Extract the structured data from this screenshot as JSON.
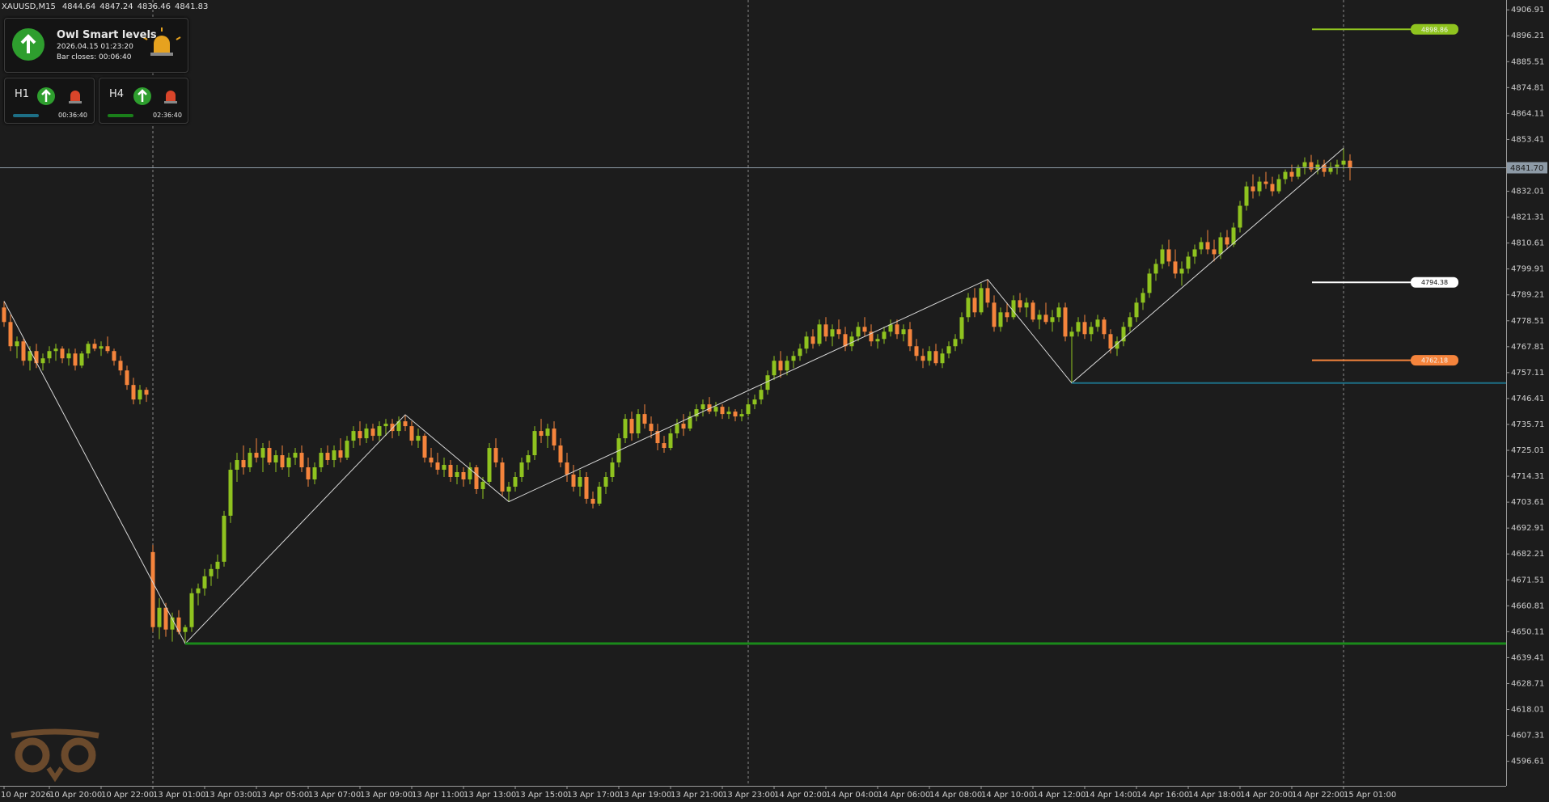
{
  "chart_data": {
    "type": "candlestick",
    "title": "XAUUSD,M15",
    "up_color": "#8fc31f",
    "down_color": "#f5843c",
    "zigzag_color": "#d8d8d8",
    "xlim": [
      -0.625,
      232.125
    ],
    "ylim": [
      4586.46,
      4910.98
    ],
    "yticks": [
      4906.91,
      4896.21,
      4885.51,
      4874.81,
      4864.11,
      4853.41,
      4842.71,
      4832.01,
      4821.31,
      4810.61,
      4799.91,
      4789.21,
      4778.51,
      4767.81,
      4757.11,
      4746.41,
      4735.71,
      4725.01,
      4714.31,
      4703.61,
      4692.91,
      4682.21,
      4671.51,
      4660.81,
      4650.11,
      4639.41,
      4628.71,
      4618.01,
      4607.31,
      4596.61
    ],
    "xticks": [
      {
        "value": 0,
        "label": "10 Apr 2026"
      },
      {
        "value": 7,
        "label": "10 Apr 20:00"
      },
      {
        "value": 15,
        "label": "10 Apr 22:00"
      },
      {
        "value": 23,
        "label": "13 Apr 01:00"
      },
      {
        "value": 31,
        "label": "13 Apr 03:00"
      },
      {
        "value": 39,
        "label": "13 Apr 05:00"
      },
      {
        "value": 47,
        "label": "13 Apr 07:00"
      },
      {
        "value": 55,
        "label": "13 Apr 09:00"
      },
      {
        "value": 63,
        "label": "13 Apr 11:00"
      },
      {
        "value": 71,
        "label": "13 Apr 13:00"
      },
      {
        "value": 79,
        "label": "13 Apr 15:00"
      },
      {
        "value": 87,
        "label": "13 Apr 17:00"
      },
      {
        "value": 95,
        "label": "13 Apr 19:00"
      },
      {
        "value": 103,
        "label": "13 Apr 21:00"
      },
      {
        "value": 111,
        "label": "13 Apr 23:00"
      },
      {
        "value": 119,
        "label": "14 Apr 02:00"
      },
      {
        "value": 127,
        "label": "14 Apr 04:00"
      },
      {
        "value": 135,
        "label": "14 Apr 06:00"
      },
      {
        "value": 143,
        "label": "14 Apr 08:00"
      },
      {
        "value": 151,
        "label": "14 Apr 10:00"
      },
      {
        "value": 159,
        "label": "14 Apr 12:00"
      },
      {
        "value": 167,
        "label": "14 Apr 14:00"
      },
      {
        "value": 175,
        "label": "14 Apr 16:00"
      },
      {
        "value": 183,
        "label": "14 Apr 18:00"
      },
      {
        "value": 191,
        "label": "14 Apr 20:00"
      },
      {
        "value": 199,
        "label": "14 Apr 22:00"
      },
      {
        "value": 207,
        "label": "15 Apr 01:00"
      }
    ],
    "candles": [
      [
        4784,
        4786.6,
        4776,
        4778
      ],
      [
        4778,
        4781,
        4766,
        4768
      ],
      [
        4768,
        4772,
        4763,
        4770
      ],
      [
        4770,
        4771,
        4760,
        4762
      ],
      [
        4762,
        4768,
        4758,
        4766
      ],
      [
        4766,
        4769,
        4759,
        4761
      ],
      [
        4761,
        4765,
        4758,
        4763
      ],
      [
        4763,
        4768,
        4761,
        4766
      ],
      [
        4766,
        4769,
        4762,
        4767
      ],
      [
        4767,
        4768,
        4761,
        4763
      ],
      [
        4763,
        4767,
        4760,
        4765
      ],
      [
        4765,
        4767,
        4758,
        4760
      ],
      [
        4760,
        4766,
        4759,
        4765
      ],
      [
        4765,
        4770,
        4763,
        4769
      ],
      [
        4769,
        4771,
        4766,
        4767
      ],
      [
        4767,
        4770,
        4764,
        4768
      ],
      [
        4768,
        4772,
        4765,
        4766
      ],
      [
        4766,
        4767,
        4760,
        4762
      ],
      [
        4762,
        4764,
        4756,
        4758
      ],
      [
        4758,
        4760,
        4750,
        4752
      ],
      [
        4752,
        4755,
        4744,
        4746
      ],
      [
        4746,
        4752,
        4744,
        4750
      ],
      [
        4750,
        4751,
        4745,
        4748
      ],
      [
        4683,
        4686,
        4650,
        4652
      ],
      [
        4652,
        4664,
        4647,
        4660
      ],
      [
        4660,
        4662,
        4648,
        4651
      ],
      [
        4651,
        4658,
        4646,
        4656
      ],
      [
        4656,
        4659,
        4649,
        4650
      ],
      [
        4650,
        4653,
        4645.2,
        4652
      ],
      [
        4652,
        4668,
        4650,
        4666
      ],
      [
        4666,
        4670,
        4661,
        4668
      ],
      [
        4668,
        4676,
        4665,
        4673
      ],
      [
        4673,
        4678,
        4669,
        4676
      ],
      [
        4676,
        4682,
        4672,
        4679
      ],
      [
        4679,
        4700,
        4677,
        4698
      ],
      [
        4698,
        4720,
        4695,
        4717
      ],
      [
        4717,
        4724,
        4712,
        4721
      ],
      [
        4721,
        4727,
        4715,
        4718
      ],
      [
        4718,
        4726,
        4716,
        4724
      ],
      [
        4724,
        4730,
        4720,
        4722
      ],
      [
        4722,
        4728,
        4716,
        4726
      ],
      [
        4726,
        4729,
        4719,
        4720
      ],
      [
        4720,
        4725,
        4716,
        4723
      ],
      [
        4723,
        4727,
        4717,
        4718
      ],
      [
        4718,
        4724,
        4714,
        4722
      ],
      [
        4722,
        4726,
        4719,
        4724
      ],
      [
        4724,
        4727,
        4716,
        4718
      ],
      [
        4718,
        4722,
        4710,
        4713
      ],
      [
        4713,
        4720,
        4711,
        4718
      ],
      [
        4718,
        4726,
        4716,
        4724
      ],
      [
        4724,
        4727,
        4719,
        4721
      ],
      [
        4721,
        4727,
        4718,
        4725
      ],
      [
        4725,
        4730,
        4720,
        4722
      ],
      [
        4722,
        4731,
        4721,
        4729
      ],
      [
        4729,
        4735,
        4726,
        4733
      ],
      [
        4733,
        4737,
        4727,
        4730
      ],
      [
        4730,
        4736,
        4728,
        4734
      ],
      [
        4734,
        4736,
        4729,
        4731
      ],
      [
        4731,
        4737,
        4729,
        4735
      ],
      [
        4735,
        4738,
        4731,
        4736
      ],
      [
        4736,
        4738,
        4730,
        4733
      ],
      [
        4733,
        4739,
        4731,
        4737
      ],
      [
        4737,
        4739.7,
        4733,
        4735
      ],
      [
        4735,
        4737,
        4727,
        4729
      ],
      [
        4729,
        4734,
        4726,
        4731
      ],
      [
        4731,
        4732,
        4720,
        4722
      ],
      [
        4722,
        4726,
        4718,
        4720
      ],
      [
        4720,
        4724,
        4715,
        4717
      ],
      [
        4717,
        4722,
        4714,
        4719
      ],
      [
        4719,
        4721,
        4712,
        4714
      ],
      [
        4714,
        4719,
        4711,
        4716
      ],
      [
        4716,
        4718,
        4710,
        4713
      ],
      [
        4713,
        4720,
        4711,
        4718
      ],
      [
        4718,
        4719,
        4707,
        4709
      ],
      [
        4709,
        4714,
        4705,
        4712
      ],
      [
        4712,
        4728,
        4711,
        4726
      ],
      [
        4726,
        4730,
        4718,
        4720
      ],
      [
        4720,
        4722,
        4706,
        4708
      ],
      [
        4708,
        4712,
        4703.8,
        4710
      ],
      [
        4710,
        4716,
        4708,
        4714
      ],
      [
        4714,
        4722,
        4712,
        4720
      ],
      [
        4720,
        4725,
        4717,
        4723
      ],
      [
        4723,
        4735,
        4721,
        4733
      ],
      [
        4733,
        4738,
        4728,
        4731
      ],
      [
        4731,
        4736,
        4726,
        4734
      ],
      [
        4734,
        4737,
        4725,
        4727
      ],
      [
        4727,
        4730,
        4718,
        4720
      ],
      [
        4720,
        4724,
        4712,
        4715
      ],
      [
        4715,
        4719,
        4708,
        4710
      ],
      [
        4710,
        4717,
        4706,
        4714
      ],
      [
        4714,
        4716,
        4703,
        4705
      ],
      [
        4705,
        4708,
        4701,
        4703
      ],
      [
        4703,
        4712,
        4702,
        4710
      ],
      [
        4710,
        4716,
        4707,
        4714
      ],
      [
        4714,
        4722,
        4712,
        4720
      ],
      [
        4720,
        4732,
        4718,
        4730
      ],
      [
        4730,
        4740,
        4728,
        4738
      ],
      [
        4738,
        4741,
        4729,
        4732
      ],
      [
        4732,
        4742,
        4730,
        4740
      ],
      [
        4740,
        4744,
        4734,
        4736
      ],
      [
        4736,
        4739,
        4730,
        4733
      ],
      [
        4733,
        4736,
        4725,
        4728
      ],
      [
        4728,
        4731,
        4724,
        4726
      ],
      [
        4726,
        4734,
        4725,
        4732
      ],
      [
        4732,
        4738,
        4730,
        4736
      ],
      [
        4736,
        4740,
        4731,
        4734
      ],
      [
        4734,
        4741,
        4733,
        4739
      ],
      [
        4739,
        4744,
        4737,
        4742
      ],
      [
        4742,
        4746,
        4739,
        4744
      ],
      [
        4744,
        4747,
        4740,
        4741
      ],
      [
        4741,
        4745,
        4739,
        4743
      ],
      [
        4743,
        4744,
        4738,
        4740
      ],
      [
        4740,
        4743,
        4738,
        4741
      ],
      [
        4741,
        4742,
        4737,
        4739
      ],
      [
        4739,
        4742,
        4737,
        4740
      ],
      [
        4740,
        4746,
        4739,
        4744
      ],
      [
        4744,
        4748,
        4742,
        4746
      ],
      [
        4746,
        4752,
        4744,
        4750
      ],
      [
        4750,
        4758,
        4748,
        4756
      ],
      [
        4756,
        4764,
        4754,
        4762
      ],
      [
        4762,
        4766,
        4755,
        4758
      ],
      [
        4758,
        4764,
        4756,
        4762
      ],
      [
        4762,
        4766,
        4759,
        4764
      ],
      [
        4764,
        4769,
        4762,
        4767
      ],
      [
        4767,
        4774,
        4765,
        4772
      ],
      [
        4772,
        4775,
        4767,
        4769
      ],
      [
        4769,
        4779,
        4768,
        4777
      ],
      [
        4777,
        4780,
        4770,
        4772
      ],
      [
        4772,
        4777,
        4768,
        4775
      ],
      [
        4775,
        4779,
        4771,
        4773
      ],
      [
        4773,
        4776,
        4766,
        4768
      ],
      [
        4768,
        4774,
        4766,
        4772
      ],
      [
        4772,
        4778,
        4770,
        4776
      ],
      [
        4776,
        4780,
        4772,
        4774
      ],
      [
        4774,
        4777,
        4768,
        4770
      ],
      [
        4770,
        4773,
        4767,
        4771
      ],
      [
        4771,
        4776,
        4769,
        4774
      ],
      [
        4774,
        4779,
        4772,
        4777
      ],
      [
        4777,
        4779,
        4771,
        4773
      ],
      [
        4773,
        4777,
        4770,
        4775
      ],
      [
        4775,
        4778,
        4766,
        4768
      ],
      [
        4768,
        4771,
        4762,
        4764
      ],
      [
        4764,
        4767,
        4759,
        4762
      ],
      [
        4762,
        4768,
        4760,
        4766
      ],
      [
        4766,
        4769,
        4760,
        4761
      ],
      [
        4761,
        4767,
        4759,
        4765
      ],
      [
        4765,
        4770,
        4763,
        4768
      ],
      [
        4768,
        4773,
        4766,
        4771
      ],
      [
        4771,
        4782,
        4769,
        4780
      ],
      [
        4780,
        4790,
        4778,
        4788
      ],
      [
        4788,
        4792,
        4780,
        4782
      ],
      [
        4782,
        4794,
        4781,
        4792
      ],
      [
        4792,
        4795.6,
        4784,
        4786
      ],
      [
        4786,
        4789,
        4774,
        4776
      ],
      [
        4776,
        4784,
        4774,
        4782
      ],
      [
        4782,
        4786,
        4778,
        4780
      ],
      [
        4780,
        4789,
        4779,
        4787
      ],
      [
        4787,
        4790,
        4782,
        4784
      ],
      [
        4784,
        4788,
        4780,
        4786
      ],
      [
        4786,
        4787,
        4778,
        4779
      ],
      [
        4779,
        4783,
        4775,
        4781
      ],
      [
        4781,
        4786,
        4777,
        4778
      ],
      [
        4778,
        4783,
        4774,
        4780
      ],
      [
        4780,
        4786,
        4778,
        4784
      ],
      [
        4784,
        4786,
        4770,
        4772
      ],
      [
        4772,
        4776,
        4752.8,
        4774
      ],
      [
        4774,
        4780,
        4772,
        4778
      ],
      [
        4778,
        4781,
        4771,
        4773
      ],
      [
        4773,
        4778,
        4770,
        4776
      ],
      [
        4776,
        4781,
        4774,
        4779
      ],
      [
        4779,
        4780,
        4771,
        4773
      ],
      [
        4773,
        4775,
        4765,
        4767
      ],
      [
        4767,
        4772,
        4764,
        4770
      ],
      [
        4770,
        4778,
        4768,
        4776
      ],
      [
        4776,
        4782,
        4774,
        4780
      ],
      [
        4780,
        4788,
        4778,
        4786
      ],
      [
        4786,
        4792,
        4783,
        4790
      ],
      [
        4790,
        4800,
        4788,
        4798
      ],
      [
        4798,
        4804,
        4795,
        4802
      ],
      [
        4802,
        4810,
        4800,
        4808
      ],
      [
        4808,
        4812,
        4801,
        4803
      ],
      [
        4803,
        4808,
        4796,
        4798
      ],
      [
        4798,
        4803,
        4793,
        4800
      ],
      [
        4800,
        4807,
        4798,
        4805
      ],
      [
        4805,
        4810,
        4802,
        4808
      ],
      [
        4808,
        4813,
        4806,
        4811
      ],
      [
        4811,
        4816,
        4806,
        4808
      ],
      [
        4808,
        4812,
        4803,
        4806
      ],
      [
        4806,
        4815,
        4804,
        4813
      ],
      [
        4813,
        4816,
        4808,
        4810
      ],
      [
        4810,
        4819,
        4809,
        4817
      ],
      [
        4817,
        4828,
        4815,
        4826
      ],
      [
        4826,
        4836,
        4824,
        4834
      ],
      [
        4834,
        4839,
        4829,
        4832
      ],
      [
        4832,
        4838,
        4830,
        4836
      ],
      [
        4836,
        4840,
        4833,
        4835
      ],
      [
        4835,
        4838,
        4830,
        4832
      ],
      [
        4832,
        4839,
        4831,
        4837
      ],
      [
        4837,
        4841,
        4835,
        4840
      ],
      [
        4840,
        4843,
        4836,
        4838
      ],
      [
        4838,
        4843,
        4837,
        4842
      ],
      [
        4842,
        4846,
        4839,
        4844
      ],
      [
        4844,
        4847,
        4840,
        4841
      ],
      [
        4841,
        4845,
        4839,
        4843
      ],
      [
        4843,
        4845,
        4838,
        4840
      ],
      [
        4840,
        4844,
        4839,
        4842
      ],
      [
        4842,
        4845,
        4839,
        4843
      ],
      [
        4843,
        4849.8,
        4841,
        4844.64
      ],
      [
        4844.64,
        4847.24,
        4836.46,
        4841.83
      ]
    ],
    "zigzag": {
      "x": [
        0,
        28,
        62,
        78,
        152,
        165,
        207
      ],
      "values": [
        4786.6,
        4645.2,
        4739.7,
        4703.8,
        4795.6,
        4752.8,
        4849.8
      ]
    },
    "levels": [
      {
        "value": 4898.86,
        "color": "#8fc31f"
      },
      {
        "value": 4794.38,
        "color": "#ffffff"
      },
      {
        "value": 4762.18,
        "color": "#f5843c"
      }
    ],
    "bid": {
      "value": 4841.7,
      "label": "4841.70"
    }
  },
  "panel": {
    "title": "Owl Smart levels",
    "time": "2026.04.15 01:23:20",
    "bar_closes": "Bar closes: 00:06:40"
  },
  "timeframes": [
    {
      "name": "H1",
      "countdown": "00:36:40"
    },
    {
      "name": "H4",
      "countdown": "02:36:40"
    }
  ]
}
